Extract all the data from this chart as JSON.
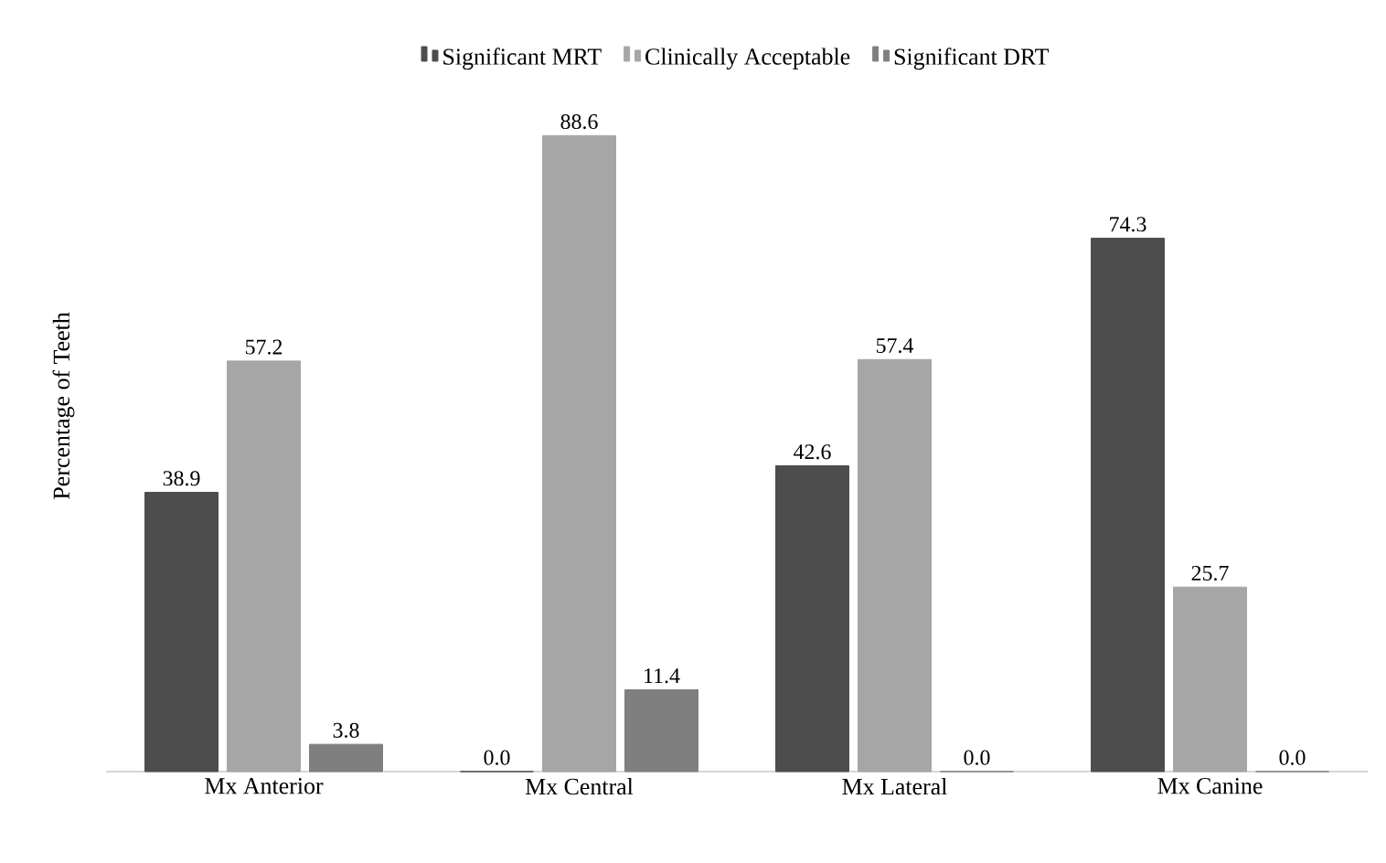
{
  "chart_data": {
    "type": "bar",
    "ylabel": "Percentage of Teeth",
    "categories": [
      "Mx Anterior",
      "Mx Central",
      "Mx Lateral",
      "Mx Canine"
    ],
    "series": [
      {
        "name": "Significant MRT",
        "color": "#4d4d4d",
        "values": [
          38.9,
          0,
          42.6,
          74.3
        ],
        "value_labels": [
          "38.9",
          "0.0",
          "42.6",
          "74.3"
        ]
      },
      {
        "name": "Clinically Acceptable",
        "color": "#a6a6a6",
        "values": [
          57.2,
          88.6,
          57.4,
          25.7
        ],
        "value_labels": [
          "57.2",
          "88.6",
          "57.4",
          "25.7"
        ]
      },
      {
        "name": "Significant DRT",
        "color": "#7f7f7f",
        "values": [
          3.8,
          11.4,
          0,
          0
        ],
        "value_labels": [
          "3.8",
          "11.4",
          "0.0",
          "0.0"
        ]
      }
    ],
    "legend": "top"
  }
}
